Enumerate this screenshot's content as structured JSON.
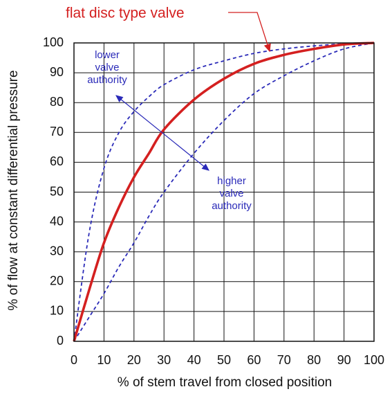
{
  "chart_data": {
    "type": "line",
    "title": "flat disc type valve",
    "x_label": "% of stem  travel from closed position",
    "y_label": "% of flow at constant differential pressure",
    "x": [
      0,
      5,
      10,
      15,
      20,
      25,
      30,
      40,
      50,
      60,
      70,
      80,
      90,
      100
    ],
    "series": [
      {
        "name": "flat disc type valve",
        "color": "#d42020",
        "dashed": false,
        "values": [
          0,
          17,
          33,
          45,
          55,
          63,
          71,
          81,
          88,
          93,
          96,
          98,
          99.5,
          100
        ]
      },
      {
        "name": "lower valve authority",
        "color": "#2a2ab8",
        "dashed": true,
        "values": [
          0,
          36,
          58,
          70,
          77,
          82,
          86,
          91,
          94,
          96.5,
          98,
          99,
          99.7,
          100
        ]
      },
      {
        "name": "higher valve authority",
        "color": "#2a2ab8",
        "dashed": true,
        "values": [
          0,
          8,
          16,
          25,
          33,
          42,
          50,
          63,
          74,
          83,
          89,
          94,
          98,
          100
        ]
      }
    ],
    "annotations": [
      {
        "lines": [
          "lower",
          "valve",
          "authority"
        ],
        "color": "#2a2ab8"
      },
      {
        "lines": [
          "higher",
          "valve",
          "authority"
        ],
        "color": "#2a2ab8"
      }
    ],
    "xlim": [
      0,
      100
    ],
    "ylim": [
      0,
      100
    ],
    "xticks": [
      0,
      10,
      20,
      30,
      40,
      50,
      60,
      70,
      80,
      90,
      100
    ],
    "yticks": [
      0,
      10,
      20,
      30,
      40,
      50,
      60,
      70,
      80,
      90,
      100
    ],
    "grid": true
  }
}
